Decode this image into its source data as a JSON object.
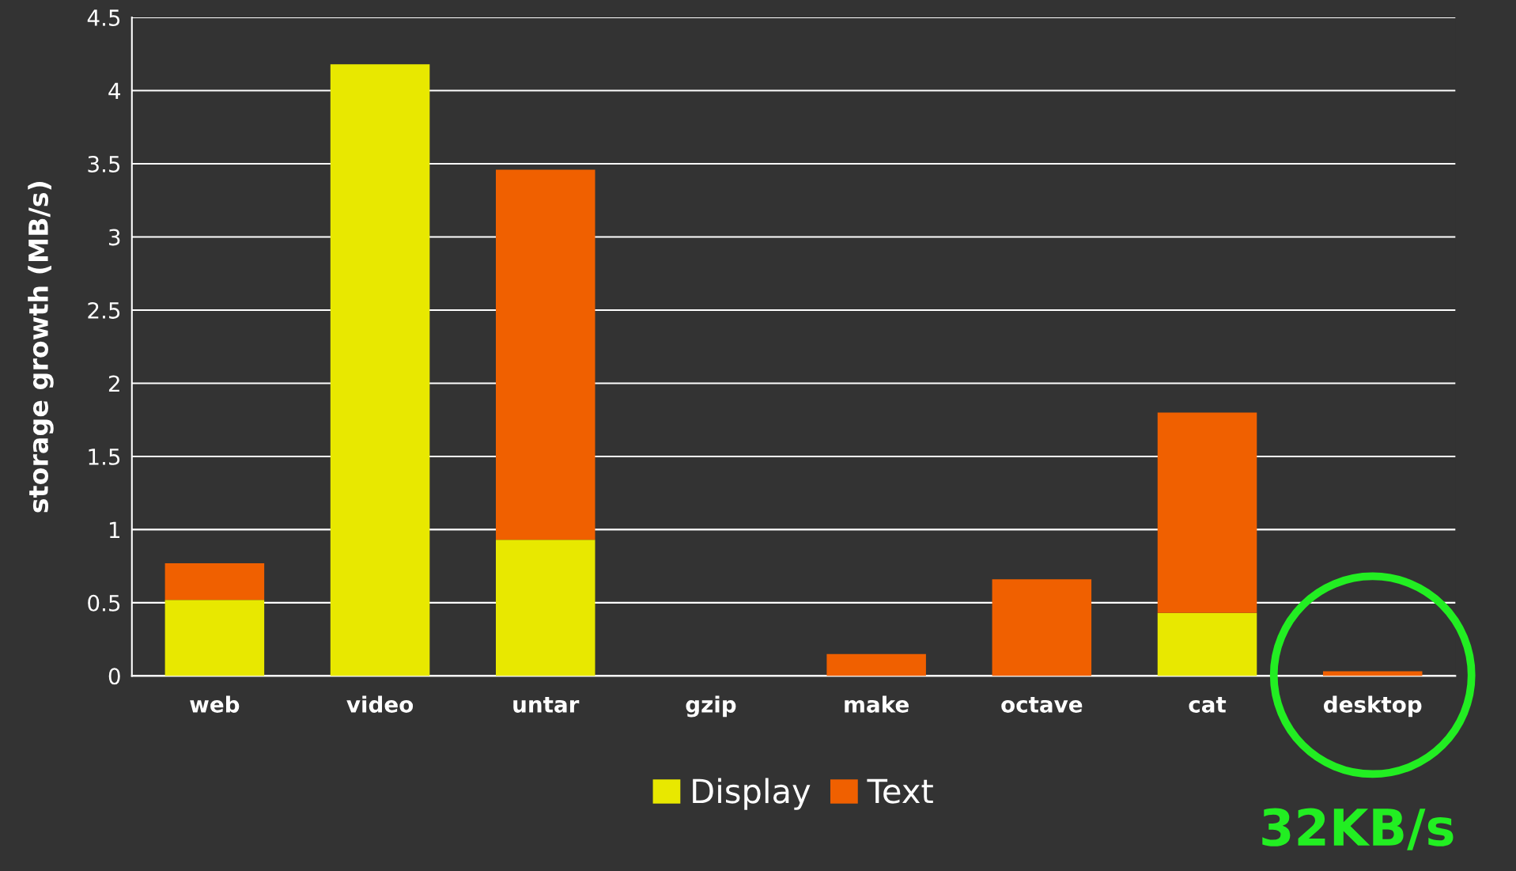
{
  "chart_data": {
    "type": "bar",
    "stacked": true,
    "ylabel": "storage growth (MB/s)",
    "categories": [
      "web",
      "video",
      "untar",
      "gzip",
      "make",
      "octave",
      "cat",
      "desktop"
    ],
    "series": [
      {
        "name": "Display",
        "color": "#e8e800",
        "values": [
          0.52,
          4.18,
          0.93,
          0,
          0,
          0,
          0.43,
          0
        ]
      },
      {
        "name": "Text",
        "color": "#f06000",
        "values": [
          0.25,
          0,
          2.53,
          0,
          0.15,
          0.66,
          1.37,
          0.032
        ]
      }
    ],
    "ylim": [
      0,
      4.5
    ],
    "yticks": [
      0,
      0.5,
      1,
      1.5,
      2,
      2.5,
      3,
      3.5,
      4,
      4.5
    ],
    "grid": "y",
    "legend": "bottom",
    "annotations": [
      {
        "text": "32KB/s",
        "x": "desktop",
        "y": 0.032
      }
    ]
  }
}
